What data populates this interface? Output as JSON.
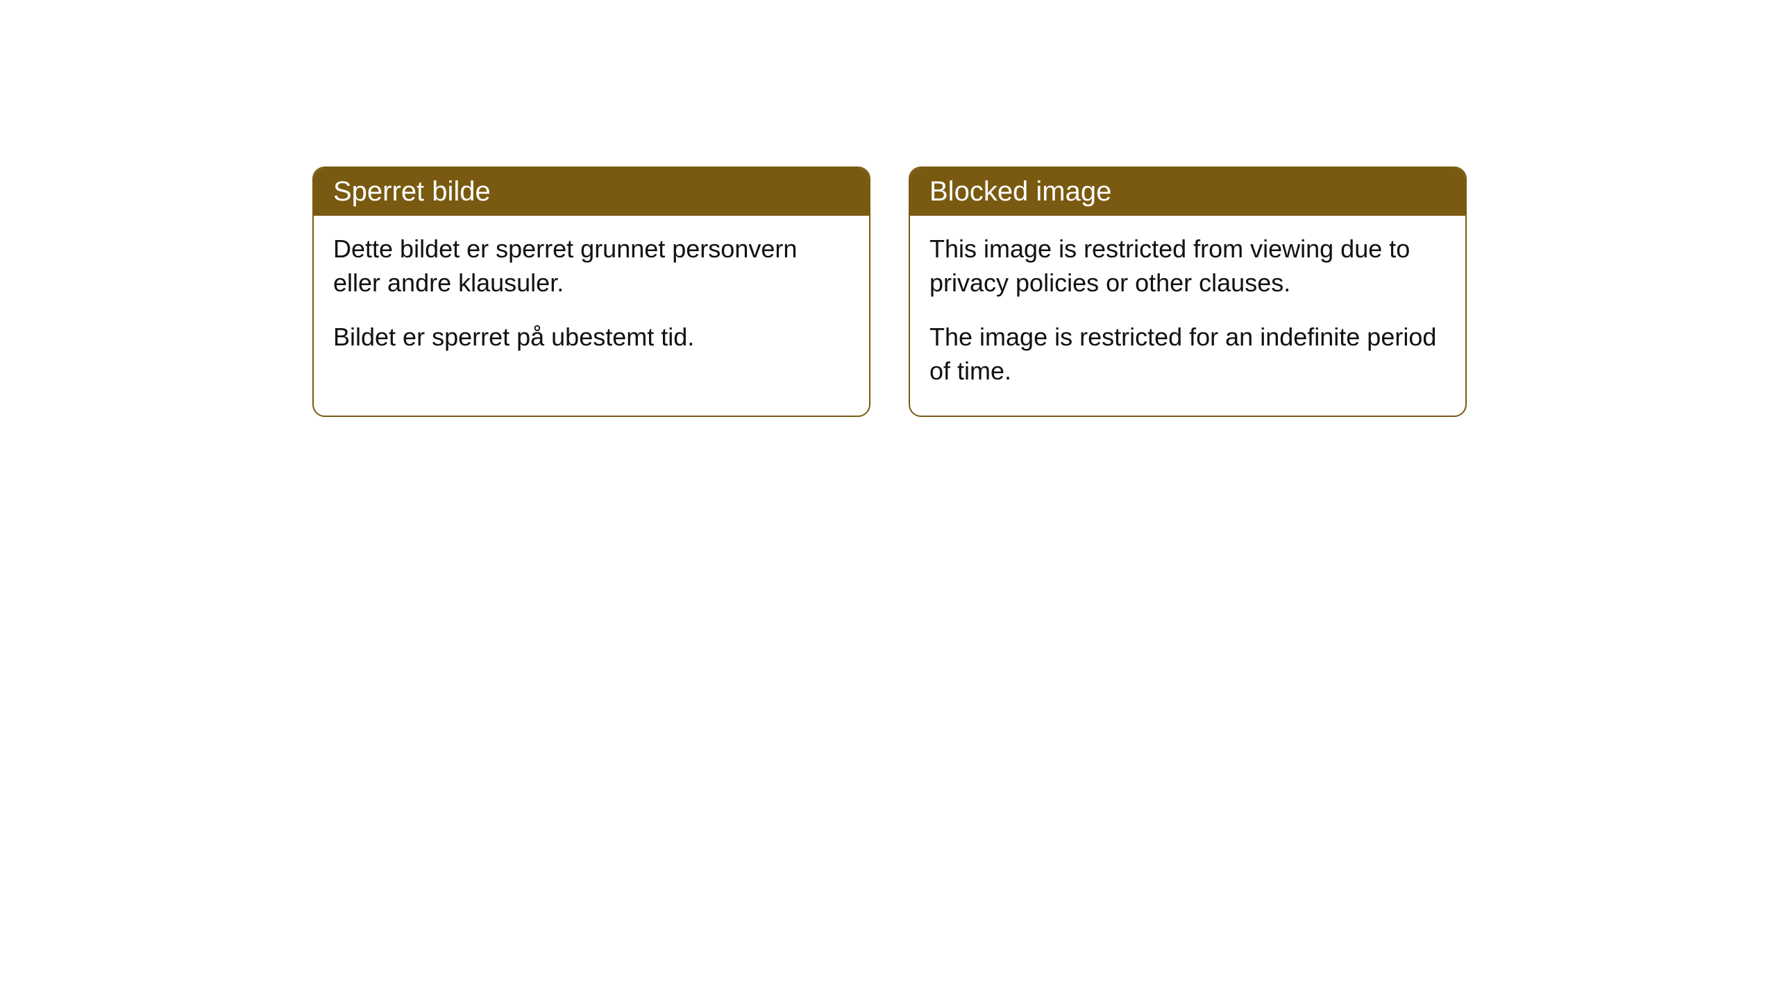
{
  "cards": [
    {
      "title": "Sperret bilde",
      "paragraph1": "Dette bildet er sperret grunnet personvern eller andre klausuler.",
      "paragraph2": "Bildet er sperret på ubestemt tid."
    },
    {
      "title": "Blocked image",
      "paragraph1": "This image is restricted from viewing due to privacy policies or other clauses.",
      "paragraph2": "The image is restricted for an indefinite period of time."
    }
  ],
  "styling": {
    "header_bg_color": "#795a10",
    "header_text_color": "#ffffff",
    "border_color": "#795a10",
    "body_text_color": "#111111",
    "card_bg_color": "#ffffff",
    "page_bg_color": "#ffffff",
    "border_radius": 18,
    "header_fontsize": 40,
    "body_fontsize": 36
  }
}
